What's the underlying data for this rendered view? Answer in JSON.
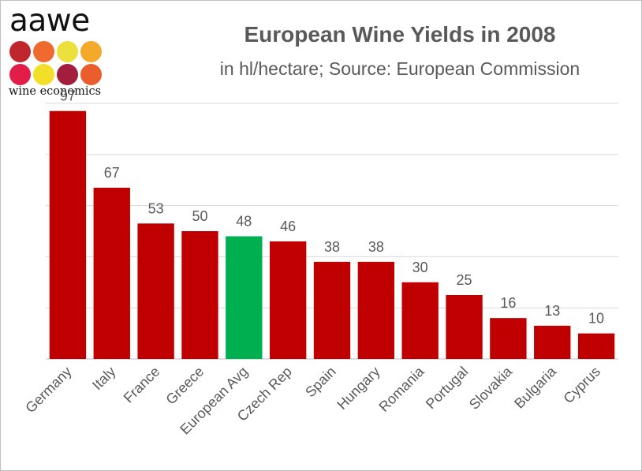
{
  "logo": {
    "wordmark": "aawe",
    "tagline": "wine economics",
    "dot_colors": [
      "#c0272d",
      "#ef6a2e",
      "#ebe03c",
      "#f4a92a",
      "#e11d48",
      "#f1df29",
      "#a31d3f",
      "#ea5e2d"
    ]
  },
  "colors": {
    "bar": "#c00000",
    "highlight": "#00b050",
    "gridline": "#d9d9d9",
    "text": "#595959"
  },
  "chart_data": {
    "type": "bar",
    "title": "European Wine Yields in 2008",
    "subtitle": "in hl/hectare; Source: European Commission",
    "xlabel": "",
    "ylabel": "",
    "ylim": [
      0,
      100
    ],
    "grid": true,
    "highlight_category": "European Avg",
    "categories": [
      "Germany",
      "Italy",
      "France",
      "Greece",
      "European Avg",
      "Czech Rep",
      "Spain",
      "Hungary",
      "Romania",
      "Portugal",
      "Slovakia",
      "Bulgaria",
      "Cyprus"
    ],
    "values": [
      97,
      67,
      53,
      50,
      48,
      46,
      38,
      38,
      30,
      25,
      16,
      13,
      10
    ]
  }
}
